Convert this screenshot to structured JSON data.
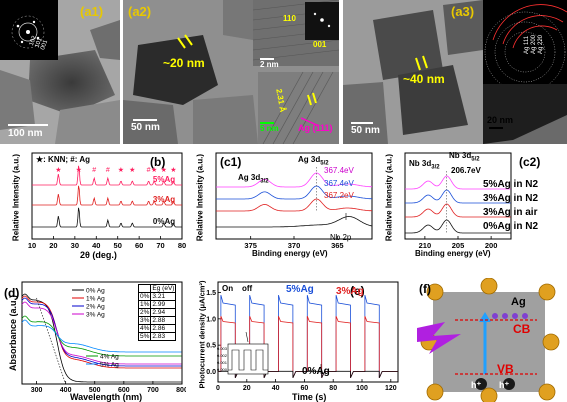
{
  "panels": {
    "a1": {
      "label": "(a1)",
      "scale": "100 nm",
      "saed": [
        "102",
        "101",
        "001"
      ]
    },
    "a2": {
      "label": "(a2)",
      "size": "~20 nm",
      "scale": "50 nm",
      "inset_scale": "2 nm",
      "inset_scale2": "5 nm",
      "fft": [
        "110",
        "001"
      ],
      "dspacing": "2.31 Å",
      "ag_plane": "Ag (111)"
    },
    "a3": {
      "label": "(a3)",
      "size": "~40 nm",
      "scale": "50 nm",
      "inset_scale": "20 nm",
      "saed": [
        "Ag 111",
        "Ag 200",
        "Ag 220"
      ]
    },
    "b": {
      "label": "(b)",
      "legend": "★: KNN;  #: Ag",
      "xlabel": "2θ (deg.)",
      "ylabel": "Relative Intensity (a.u.)",
      "xticks": [
        "10",
        "20",
        "30",
        "40",
        "50",
        "60",
        "70",
        "80"
      ],
      "series_labels": [
        "5%Ag",
        "3%Ag",
        "0%Ag"
      ]
    },
    "c1": {
      "label": "(c1)",
      "xlabel": "Binding energy (eV)",
      "ylabel": "Relative Intensity (a.u.)",
      "xticks": [
        "375",
        "370",
        "365"
      ],
      "peak1": "Ag 3d",
      "peak1_sub": "3/2",
      "peak2": "Ag 3d",
      "peak2_sub": "5/2",
      "energies": [
        "367.4eV",
        "367.4eV",
        "367.2eV"
      ],
      "nb": "Nb 2p"
    },
    "c2": {
      "label": "(c2)",
      "xlabel": "Binding energy (eV)",
      "ylabel": "Relative Intensity (a.u.)",
      "xticks": [
        "210",
        "205",
        "200"
      ],
      "peak1": "Nb 3d",
      "peak1_sub": "3/2",
      "peak2": "Nb 3d",
      "peak2_sub": "5/2",
      "energy": "206.7eV",
      "series_labels": [
        "5%Ag in N2",
        "3%Ag in N2",
        "3%Ag in air",
        "0%Ag in N2"
      ]
    },
    "d": {
      "label": "(d)",
      "xlabel": "Wavelength (nm)",
      "ylabel": "Absorbance (a.u.)",
      "xticks": [
        "300",
        "400",
        "500",
        "600",
        "700",
        "800"
      ],
      "table_head": "Eg (eV)"
    },
    "e": {
      "label": "(e)",
      "xlabel": "Time (s)",
      "ylabel": "Photocurrent density (μA/cm²)",
      "xticks": [
        "0",
        "20",
        "40",
        "60",
        "80",
        "100",
        "120"
      ],
      "yticks": [
        "1.5",
        "1.0",
        "0.5",
        "0.0"
      ],
      "on": "On",
      "off": "off",
      "lbl5": "5%Ag",
      "lbl3": "3%Ag",
      "lbl0": "0%Ag",
      "inset_yticks": [
        "0.003",
        "0.002",
        "0.001",
        "0.000"
      ]
    },
    "f": {
      "label": "(f)",
      "ag": "Ag",
      "cb": "CB",
      "vb": "VB",
      "hole": "h⁺"
    }
  },
  "chart_data": [
    {
      "type": "line",
      "title": "(b)",
      "xlabel": "2θ (deg.)",
      "ylabel": "Relative Intensity (a.u.)",
      "xlim": [
        10,
        80
      ],
      "series": [
        {
          "name": "5%Ag",
          "peaks_x": [
            22.3,
            31.8,
            39.0,
            45.4,
            51.5,
            56.8,
            64.4,
            67.0,
            71.5,
            76.0
          ]
        },
        {
          "name": "3%Ag",
          "peaks_x": [
            22.3,
            31.8,
            39.0,
            45.4,
            51.5,
            56.8,
            64.4,
            67.0,
            71.5,
            76.0
          ]
        },
        {
          "name": "0%Ag",
          "peaks_x": [
            22.3,
            31.8,
            45.4,
            51.5,
            56.8,
            71.5,
            76.0
          ]
        }
      ]
    },
    {
      "type": "line",
      "title": "(c1)",
      "xlabel": "Binding energy (eV)",
      "xlim": [
        379,
        361
      ],
      "peaks": {
        "Ag 3d3/2": 373.4,
        "Ag 3d5/2": [
          367.4,
          367.4,
          367.2
        ],
        "Nb 2p": 364.0
      }
    },
    {
      "type": "line",
      "title": "(c2)",
      "xlabel": "Binding energy (eV)",
      "xlim": [
        213,
        197
      ],
      "peaks": {
        "Nb 3d3/2": 209.5,
        "Nb 3d5/2": 206.7
      },
      "series_names": [
        "5%Ag in N2",
        "3%Ag in N2",
        "3%Ag in air",
        "0%Ag in N2"
      ]
    },
    {
      "type": "line",
      "title": "(d)",
      "xlabel": "Wavelength (nm)",
      "ylabel": "Absorbance (a.u.)",
      "xlim": [
        250,
        800
      ],
      "series": [
        {
          "name": "0% Ag",
          "color": "#000000"
        },
        {
          "name": "1% Ag",
          "color": "#e00000"
        },
        {
          "name": "2% Ag",
          "color": "#0000cc"
        },
        {
          "name": "3% Ag",
          "color": "#cc00cc"
        },
        {
          "name": "4% Ag",
          "color": "#009900"
        },
        {
          "name": "5% Ag",
          "color": "#0088ff"
        }
      ],
      "table": {
        "columns": [
          "",
          "Eg (eV)"
        ],
        "rows": [
          [
            "0%",
            "3.21"
          ],
          [
            "1%",
            "2.99"
          ],
          [
            "2%",
            "2.94"
          ],
          [
            "3%",
            "2.88"
          ],
          [
            "4%",
            "2.86"
          ],
          [
            "5%",
            "2.83"
          ]
        ]
      }
    },
    {
      "type": "line",
      "title": "(e)",
      "xlabel": "Time (s)",
      "ylabel": "Photocurrent density (μA/cm²)",
      "xlim": [
        0,
        125
      ],
      "ylim": [
        -0.2,
        1.7
      ],
      "on_times": [
        2,
        22,
        42,
        62,
        82,
        102
      ],
      "series": [
        {
          "name": "5%Ag",
          "color": "#1a4fd8",
          "on_level": 1.3,
          "spike": 1.45
        },
        {
          "name": "3%Ag",
          "color": "#e02020",
          "on_level": 0.95,
          "spike": 1.05
        },
        {
          "name": "0%Ag",
          "color": "#111111",
          "on_level": 0.003
        }
      ]
    }
  ]
}
